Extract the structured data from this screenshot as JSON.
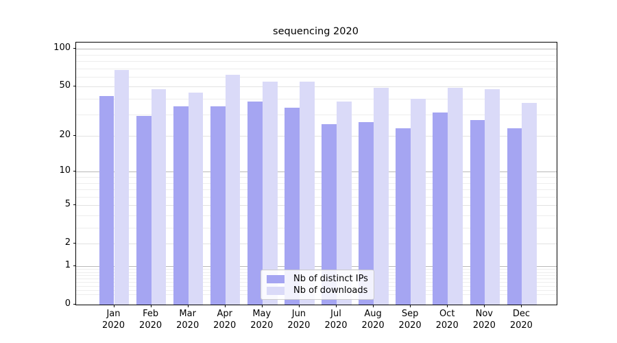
{
  "title": "sequencing 2020",
  "chart_data": {
    "type": "bar",
    "title": "sequencing 2020",
    "scale": "log(value+1) quasi-log y axis, 0 at baseline",
    "categories": [
      "Jan",
      "Feb",
      "Mar",
      "Apr",
      "May",
      "Jun",
      "Jul",
      "Aug",
      "Sep",
      "Oct",
      "Nov",
      "Dec"
    ],
    "year_label": "2020",
    "series": [
      {
        "name": "Nb of distinct IPs",
        "color": "#a5a5f2",
        "values": [
          42,
          29,
          35,
          35,
          38,
          34,
          25,
          26,
          23,
          31,
          27,
          23
        ]
      },
      {
        "name": "Nb of downloads",
        "color": "#dadaf8",
        "values": [
          68,
          48,
          45,
          62,
          55,
          55,
          38,
          49,
          40,
          49,
          48,
          37
        ]
      }
    ],
    "yticks": [
      100,
      50,
      20,
      10,
      5,
      2,
      1,
      0
    ],
    "minor_yticks": [
      0.2,
      0.3,
      0.4,
      0.5,
      0.6,
      0.7,
      0.8,
      0.9,
      3,
      4,
      6,
      7,
      8,
      9,
      30,
      40,
      60,
      70,
      80,
      90
    ],
    "decade_ticks": [
      100,
      10,
      1
    ],
    "ylim": [
      0,
      111
    ],
    "xlabel": "",
    "ylabel": "",
    "grid": "both",
    "legend_position": "lower center",
    "colors": {
      "grid_decade": "#b8b8b8",
      "grid_major": "#e2e2e2",
      "grid_minor": "#ededed",
      "spine": "#000000",
      "background": "#ffffff"
    }
  }
}
